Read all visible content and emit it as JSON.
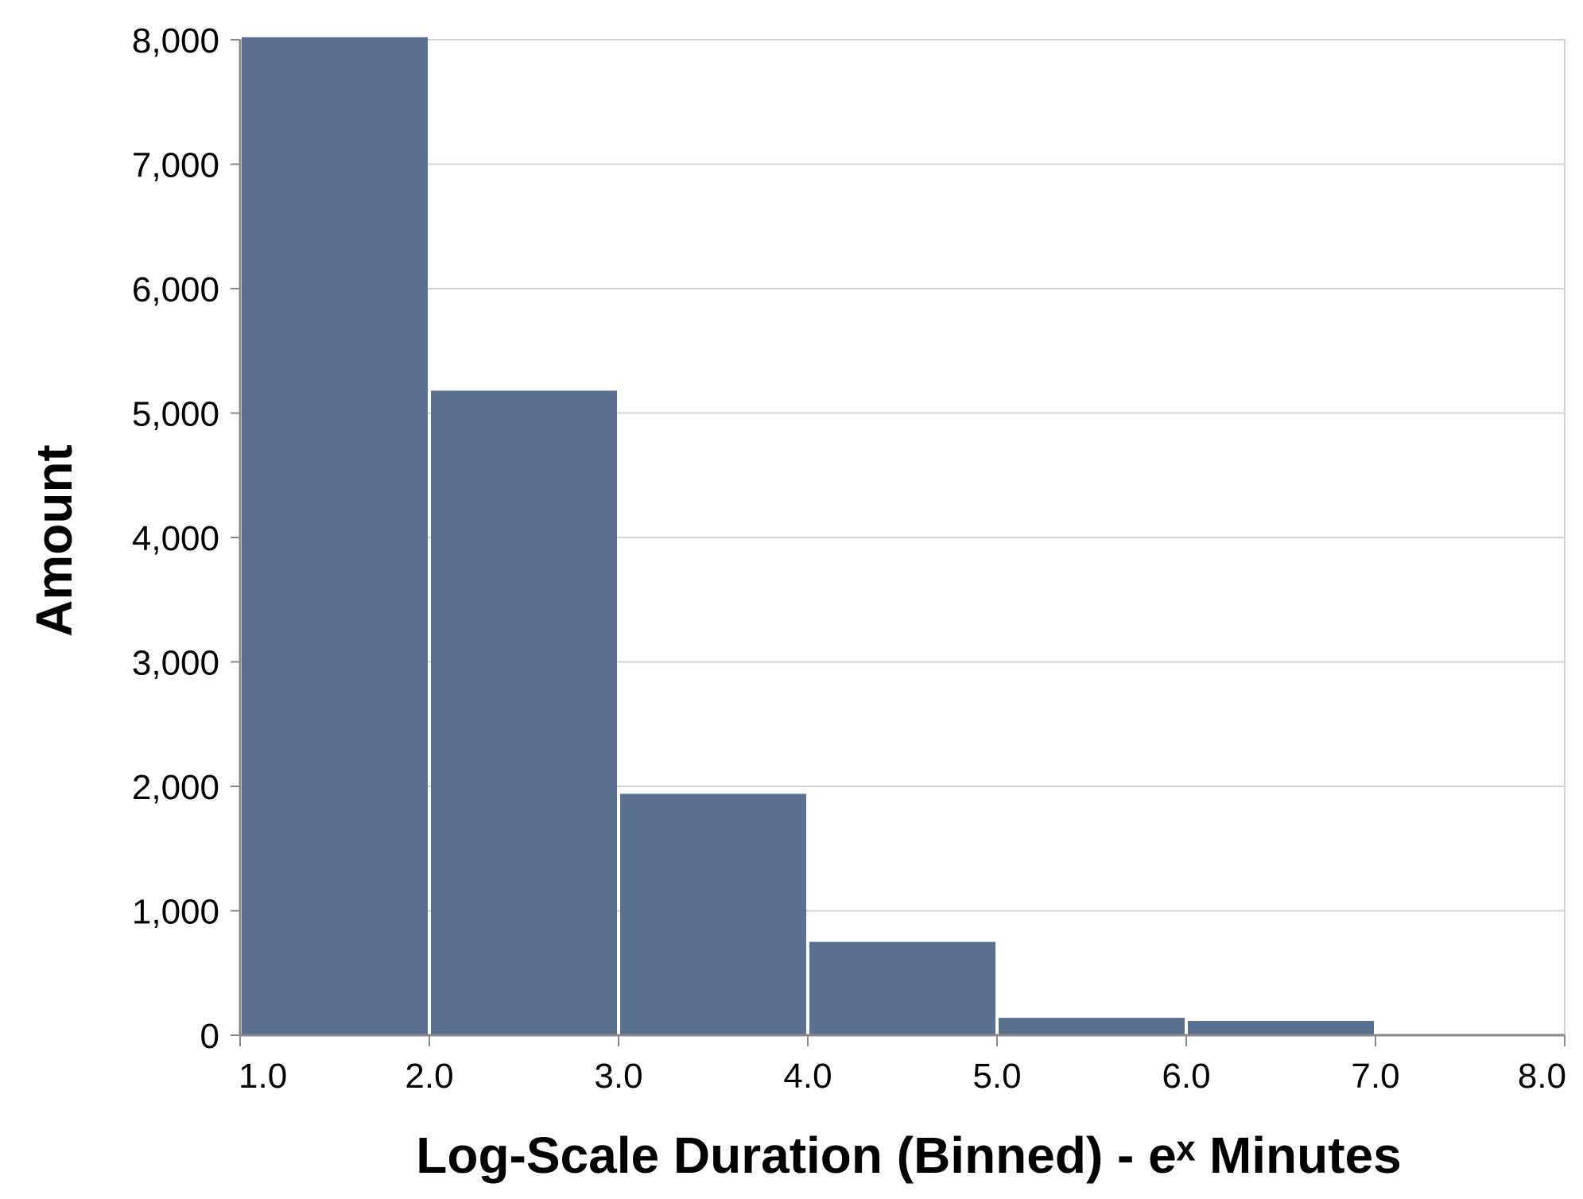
{
  "chart_data": {
    "type": "bar",
    "title": "",
    "xlabel": "Log-Scale Duration (Binned) - eˣ Minutes",
    "ylabel": "Amount",
    "bins": [
      {
        "start": 1.0,
        "end": 2.0,
        "value": 8020
      },
      {
        "start": 2.0,
        "end": 3.0,
        "value": 5180
      },
      {
        "start": 3.0,
        "end": 4.0,
        "value": 1940
      },
      {
        "start": 4.0,
        "end": 5.0,
        "value": 750
      },
      {
        "start": 5.0,
        "end": 6.0,
        "value": 140
      },
      {
        "start": 6.0,
        "end": 7.0,
        "value": 115
      },
      {
        "start": 7.0,
        "end": 8.0,
        "value": 10
      }
    ],
    "xlim": [
      1.0,
      8.0
    ],
    "ylim": [
      0,
      8000
    ],
    "x_ticks": [
      1.0,
      2.0,
      3.0,
      4.0,
      5.0,
      6.0,
      7.0,
      8.0
    ],
    "x_tick_labels": [
      "1.0",
      "2.0",
      "3.0",
      "4.0",
      "5.0",
      "6.0",
      "7.0",
      "8.0"
    ],
    "y_ticks": [
      0,
      1000,
      2000,
      3000,
      4000,
      5000,
      6000,
      7000,
      8000
    ],
    "y_tick_labels": [
      "0",
      "1,000",
      "2,000",
      "3,000",
      "4,000",
      "5,000",
      "6,000",
      "7,000",
      "8,000"
    ],
    "grid": "horizontal",
    "legend": "none",
    "bar_color": "#5b7090",
    "grid_color": "#d3d3d3",
    "axis_color": "#888888"
  }
}
